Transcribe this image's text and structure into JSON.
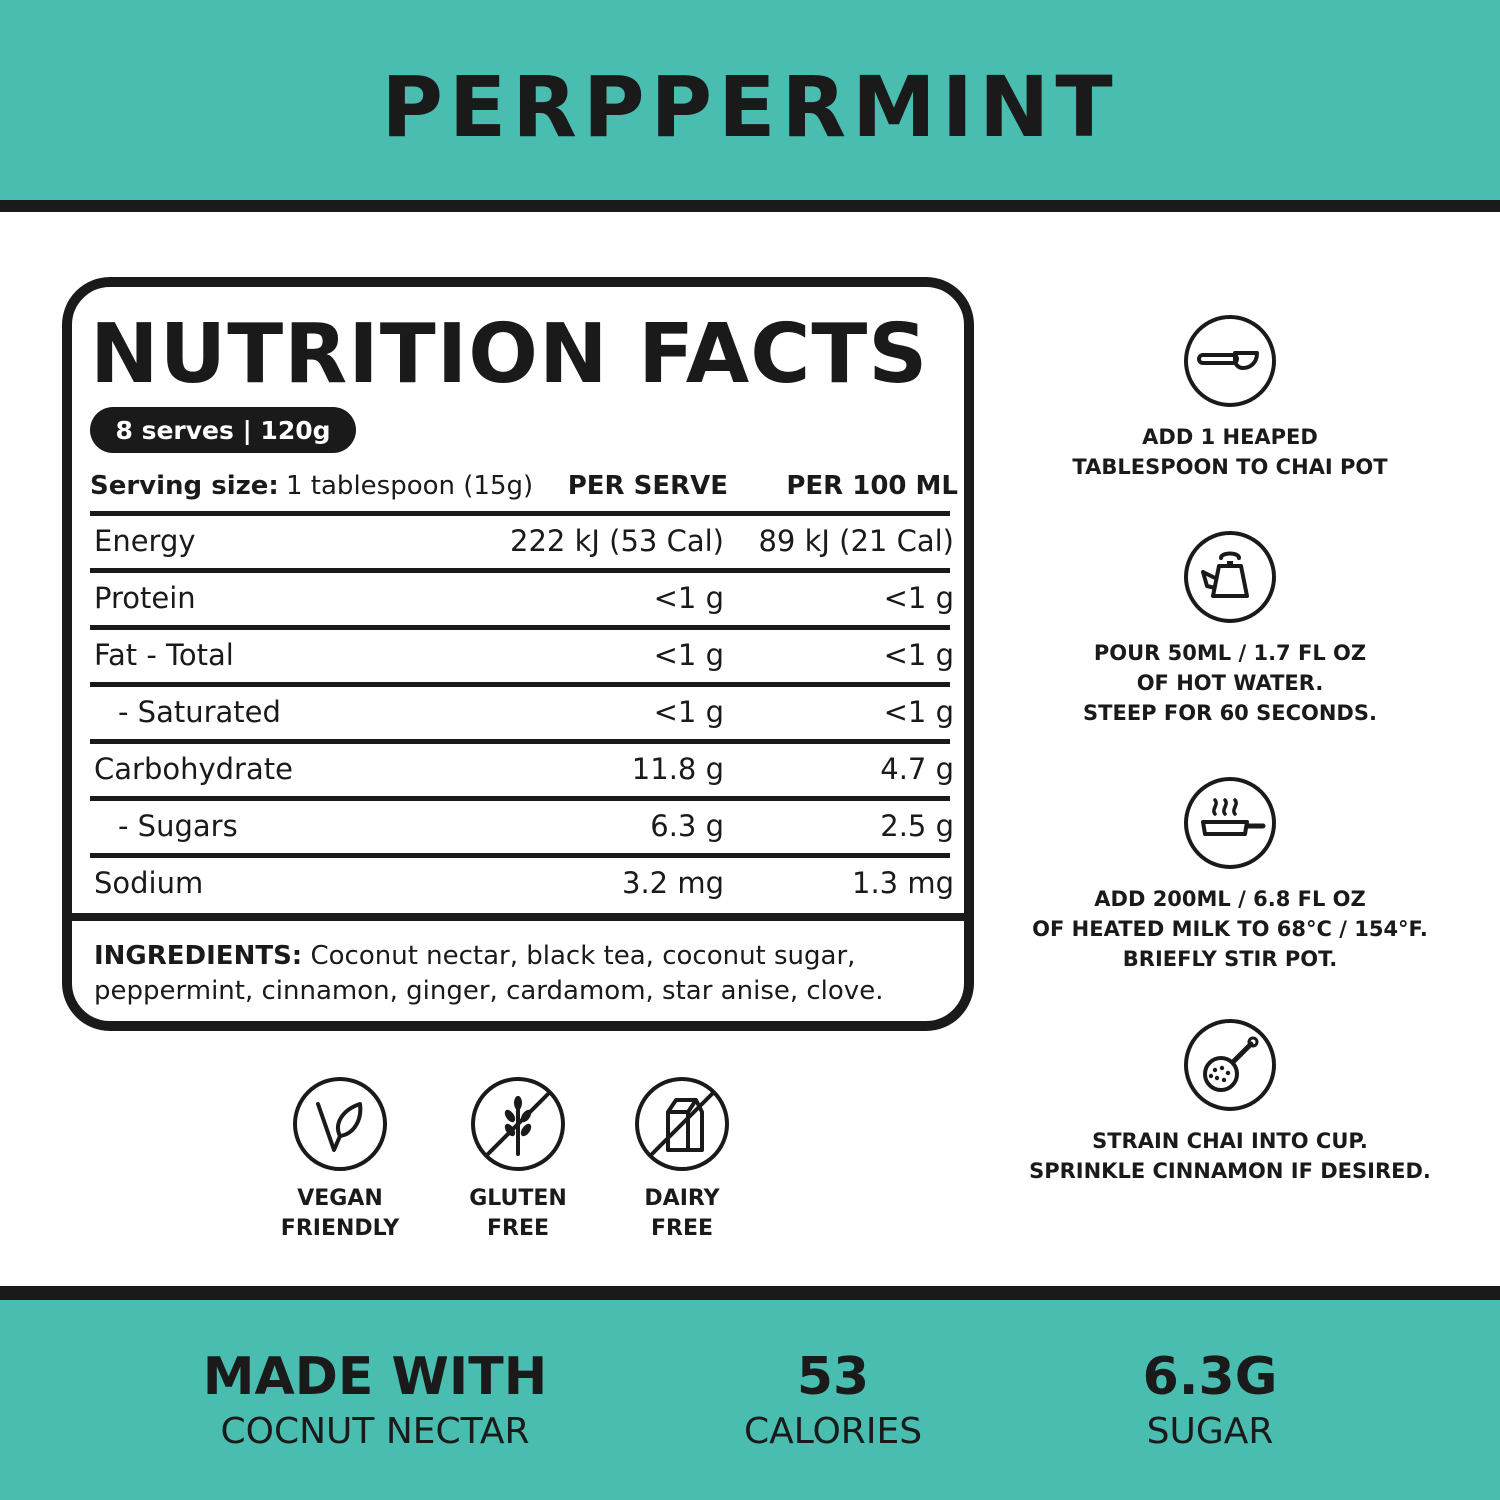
{
  "header": {
    "title": "PERPPERMINT"
  },
  "nutrition": {
    "title": "NUTRITION FACTS",
    "serves_pill": "8 serves | 120g",
    "serving_label": "Serving size:",
    "serving_value": "1 tablespoon (15g)",
    "col_per_serve": "PER SERVE",
    "col_per_100": "PER 100 ML",
    "rows": [
      {
        "name": "Energy",
        "per_serve": "222 kJ (53 Cal)",
        "per_100": "89 kJ (21 Cal)"
      },
      {
        "name": "Protein",
        "per_serve": "<1 g",
        "per_100": "<1 g"
      },
      {
        "name": "Fat - Total",
        "per_serve": "<1 g",
        "per_100": "<1 g"
      },
      {
        "name": "- Saturated",
        "per_serve": "<1 g",
        "per_100": "<1 g"
      },
      {
        "name": "Carbohydrate",
        "per_serve": "11.8 g",
        "per_100": "4.7 g"
      },
      {
        "name": "- Sugars",
        "per_serve": "6.3 g",
        "per_100": "2.5 g"
      },
      {
        "name": "Sodium",
        "per_serve": "3.2 mg",
        "per_100": "1.3 mg"
      }
    ],
    "ingredients_label": "INGREDIENTS:",
    "ingredients_text": " Coconut nectar, black tea, coconut sugar, peppermint, cinnamon, ginger, cardamom, star anise, clove."
  },
  "badges": [
    {
      "icon": "vegan-leaf-icon",
      "label": "VEGAN\nFRIENDLY"
    },
    {
      "icon": "gluten-free-icon",
      "label": "GLUTEN\nFREE"
    },
    {
      "icon": "dairy-free-icon",
      "label": "DAIRY\nFREE"
    }
  ],
  "steps": [
    {
      "icon": "tablespoon-icon",
      "text": "ADD 1 HEAPED\nTABLESPOON TO CHAI POT"
    },
    {
      "icon": "kettle-icon",
      "text": "POUR 50ML / 1.7 FL OZ\nOF HOT WATER.\nSTEEP FOR 60 SECONDS."
    },
    {
      "icon": "hot-pan-icon",
      "text": "ADD 200ML / 6.8 FL OZ\nOF HEATED MILK TO 68°C / 154°F.\nBRIEFLY STIR POT."
    },
    {
      "icon": "strainer-icon",
      "text": "STRAIN CHAI INTO CUP.\nSPRINKLE CINNAMON IF DESIRED."
    }
  ],
  "stats": [
    {
      "big": "MADE WITH",
      "small": "COCNUT NECTAR"
    },
    {
      "big": "53",
      "small": "CALORIES"
    },
    {
      "big": "6.3G",
      "small": "SUGAR"
    }
  ],
  "colors": {
    "teal": "#49bdb0",
    "ink": "#1a1a1a",
    "background": "#ffffff"
  }
}
